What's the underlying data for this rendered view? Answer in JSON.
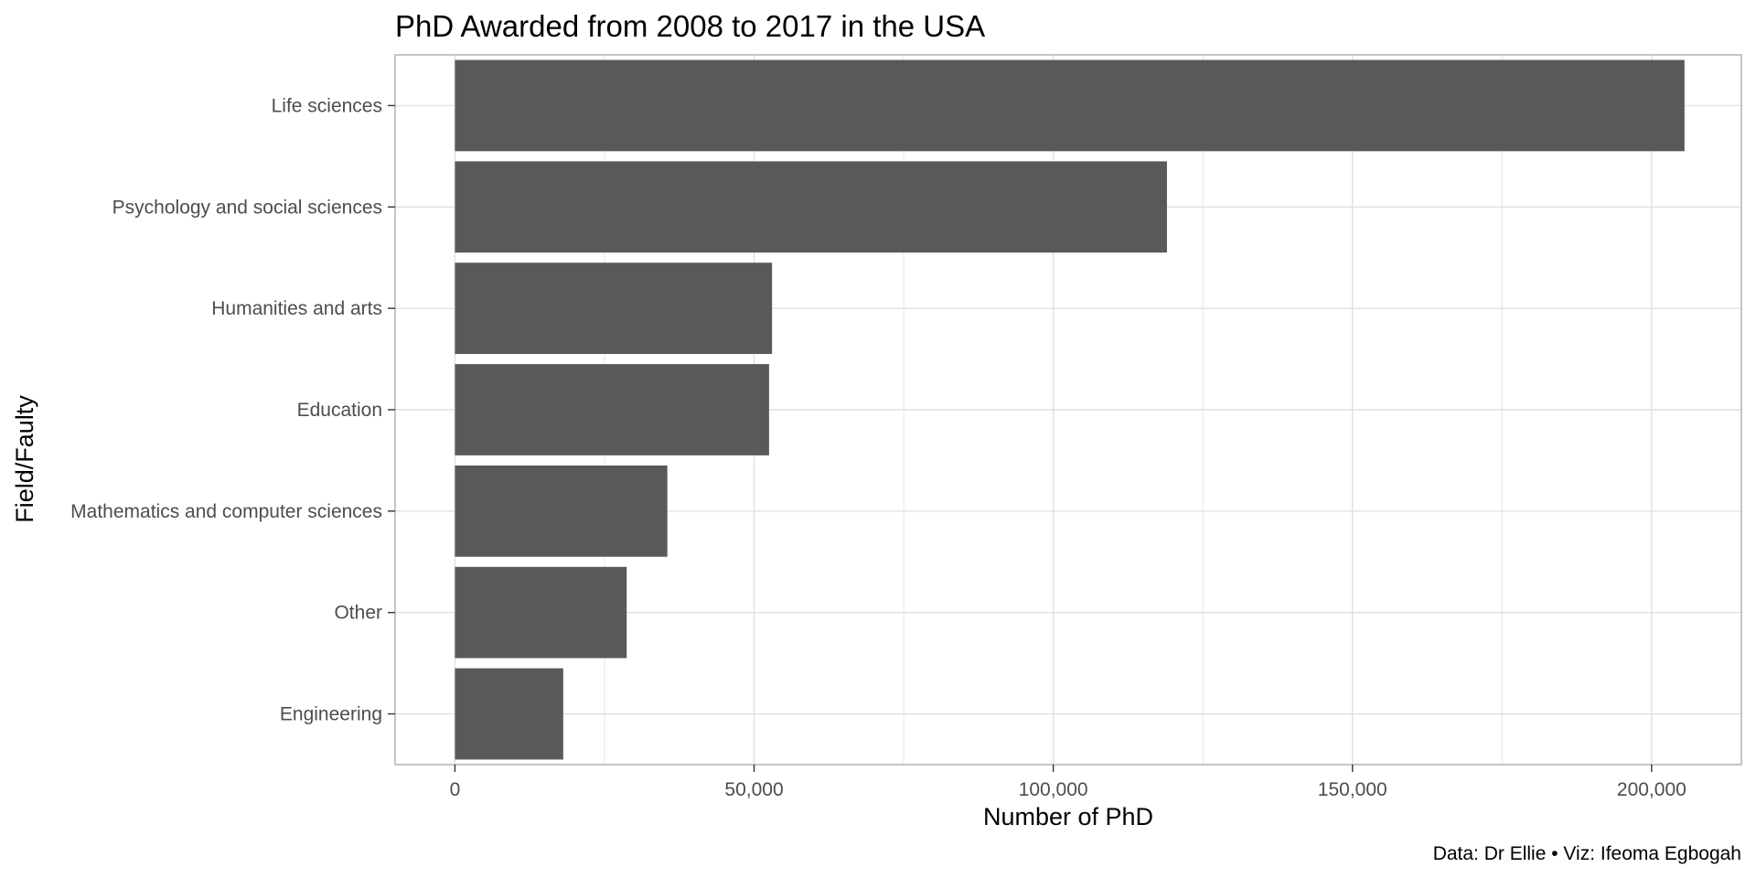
{
  "chart_data": {
    "type": "bar",
    "orientation": "horizontal",
    "title": "PhD Awarded from 2008 to 2017 in the USA",
    "xlabel": "Number of PhD",
    "ylabel": "Field/Faulty",
    "caption": "Data: Dr Ellie • Viz: Ifeoma Egbogah",
    "categories": [
      "Life sciences",
      "Psychology and social sciences",
      "Humanities and arts",
      "Education",
      "Mathematics and computer sciences",
      "Other",
      "Engineering"
    ],
    "values": [
      205500,
      119000,
      53000,
      52500,
      35500,
      28700,
      18100
    ],
    "xlim": [
      -10000,
      215000
    ],
    "xticks": [
      0,
      50000,
      100000,
      150000,
      200000
    ],
    "xtick_labels": [
      "0",
      "50,000",
      "100,000",
      "150,000",
      "200,000"
    ],
    "grid": true,
    "legend": "none",
    "colors": {
      "bar": "#595959",
      "grid": "#e0e0e0",
      "panel_border": "#b3b3b3",
      "tick": "#4d4d4d"
    }
  }
}
